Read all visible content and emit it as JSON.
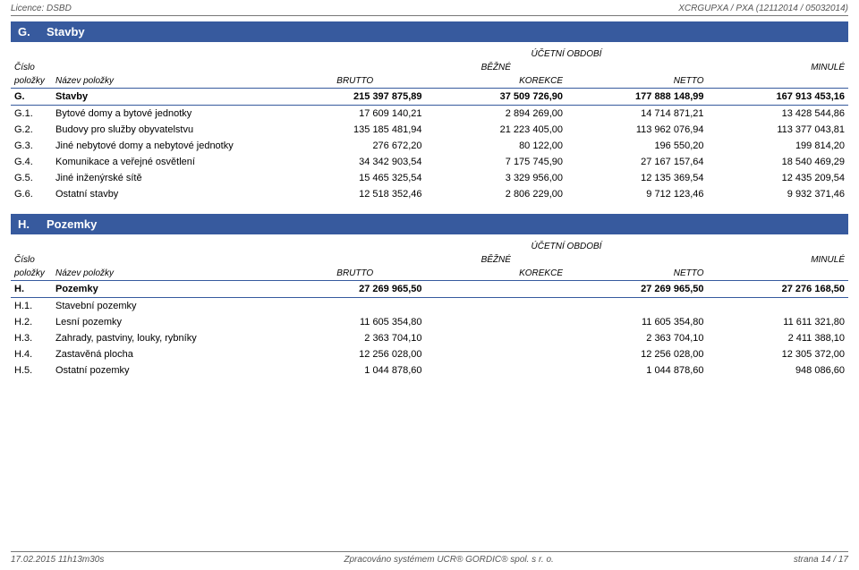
{
  "header": {
    "licence_label": "Licence:",
    "licence_value": "DSBD",
    "right_text": "XCRGUPXA / PXA (12112014 / 05032014)"
  },
  "sections": {
    "g": {
      "prefix": "G.",
      "title": "Stavby",
      "period_label": "ÚČETNÍ OBDOBÍ",
      "head_cislo": "Číslo",
      "head_bezne": "BĚŽNÉ",
      "head_minule": "MINULÉ",
      "head_polozky": "položky",
      "head_nazev": "Název položky",
      "head_brutto": "BRUTTO",
      "head_korekce": "KOREKCE",
      "head_netto": "NETTO",
      "sum": {
        "code": "G.",
        "name": "Stavby",
        "brutto": "215 397 875,89",
        "korekce": "37 509 726,90",
        "netto": "177 888 148,99",
        "minule": "167 913 453,16"
      },
      "rows": [
        {
          "code": "G.1.",
          "name": "Bytové domy a bytové jednotky",
          "brutto": "17 609 140,21",
          "korekce": "2 894 269,00",
          "netto": "14 714 871,21",
          "minule": "13 428 544,86"
        },
        {
          "code": "G.2.",
          "name": "Budovy pro služby obyvatelstvu",
          "brutto": "135 185 481,94",
          "korekce": "21 223 405,00",
          "netto": "113 962 076,94",
          "minule": "113 377 043,81"
        },
        {
          "code": "G.3.",
          "name": "Jiné nebytové domy a nebytové jednotky",
          "brutto": "276 672,20",
          "korekce": "80 122,00",
          "netto": "196 550,20",
          "minule": "199 814,20"
        },
        {
          "code": "G.4.",
          "name": "Komunikace a veřejné osvětlení",
          "brutto": "34 342 903,54",
          "korekce": "7 175 745,90",
          "netto": "27 167 157,64",
          "minule": "18 540 469,29"
        },
        {
          "code": "G.5.",
          "name": "Jiné inženýrské sítě",
          "brutto": "15 465 325,54",
          "korekce": "3 329 956,00",
          "netto": "12 135 369,54",
          "minule": "12 435 209,54"
        },
        {
          "code": "G.6.",
          "name": "Ostatní stavby",
          "brutto": "12 518 352,46",
          "korekce": "2 806 229,00",
          "netto": "9 712 123,46",
          "minule": "9 932 371,46"
        }
      ]
    },
    "h": {
      "prefix": "H.",
      "title": "Pozemky",
      "period_label": "ÚČETNÍ OBDOBÍ",
      "head_cislo": "Číslo",
      "head_bezne": "BĚŽNÉ",
      "head_minule": "MINULÉ",
      "head_polozky": "položky",
      "head_nazev": "Název položky",
      "head_brutto": "BRUTTO",
      "head_korekce": "KOREKCE",
      "head_netto": "NETTO",
      "sum": {
        "code": "H.",
        "name": "Pozemky",
        "brutto": "27 269 965,50",
        "korekce": "",
        "netto": "27 269 965,50",
        "minule": "27 276 168,50"
      },
      "rows": [
        {
          "code": "H.1.",
          "name": "Stavební pozemky",
          "brutto": "",
          "korekce": "",
          "netto": "",
          "minule": ""
        },
        {
          "code": "H.2.",
          "name": "Lesní pozemky",
          "brutto": "11 605 354,80",
          "korekce": "",
          "netto": "11 605 354,80",
          "minule": "11 611 321,80"
        },
        {
          "code": "H.3.",
          "name": "Zahrady, pastviny, louky, rybníky",
          "brutto": "2 363 704,10",
          "korekce": "",
          "netto": "2 363 704,10",
          "minule": "2 411 388,10"
        },
        {
          "code": "H.4.",
          "name": "Zastavěná plocha",
          "brutto": "12 256 028,00",
          "korekce": "",
          "netto": "12 256 028,00",
          "minule": "12 305 372,00"
        },
        {
          "code": "H.5.",
          "name": "Ostatní pozemky",
          "brutto": "1 044 878,60",
          "korekce": "",
          "netto": "1 044 878,60",
          "minule": "948 086,60"
        }
      ]
    }
  },
  "footer": {
    "left": "17.02.2015 11h13m30s",
    "center": "Zpracováno systémem  UCR® GORDIC® spol. s  r. o.",
    "right": "strana 14 / 17"
  },
  "colors": {
    "section_bg": "#375a9e",
    "section_fg": "#ffffff",
    "rule": "#777777",
    "text_muted": "#555555"
  }
}
